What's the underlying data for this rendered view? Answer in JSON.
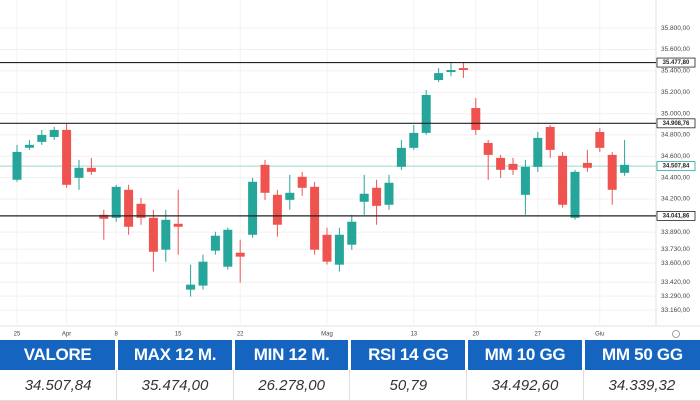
{
  "chart_data": {
    "type": "candlestick",
    "categories": [
      "25",
      null,
      null,
      null,
      "Apr",
      null,
      null,
      null,
      "8",
      null,
      null,
      null,
      null,
      "15",
      null,
      null,
      null,
      null,
      "22",
      null,
      null,
      null,
      null,
      null,
      null,
      "Mag",
      null,
      null,
      null,
      null,
      null,
      null,
      "13",
      null,
      null,
      null,
      null,
      "20",
      null,
      null,
      null,
      null,
      "27",
      null,
      null,
      null,
      null,
      "Giu",
      null,
      null
    ],
    "open": [
      34380,
      34680,
      34735,
      34781,
      34847,
      34398,
      34492,
      34052,
      34024,
      34286,
      34155,
      34024,
      33725,
      33968,
      33351,
      33389,
      33716,
      33566,
      33697,
      33865,
      34520,
      34239,
      34192,
      34408,
      34314,
      33865,
      33585,
      33772,
      34174,
      34305,
      34146,
      34501,
      34679,
      34819,
      35314,
      35389,
      35426,
      35052,
      34725,
      34585,
      34529,
      34239,
      34501,
      34875,
      34604,
      34024,
      34538,
      34828,
      34613,
      34445
    ],
    "high": [
      34707,
      34753,
      34847,
      34875,
      34903,
      34566,
      34585,
      34099,
      34333,
      34333,
      34211,
      34099,
      34099,
      34286,
      33585,
      33679,
      33893,
      33931,
      33819,
      34398,
      34566,
      34286,
      34426,
      34454,
      34361,
      33931,
      33931,
      34052,
      34426,
      34380,
      34426,
      34753,
      34893,
      35221,
      35426,
      35473,
      35482,
      35146,
      34753,
      34613,
      34585,
      34566,
      34828,
      34893,
      34641,
      34473,
      34660,
      34865,
      34641,
      34753
    ],
    "low": [
      34361,
      34660,
      34707,
      34753,
      34305,
      34286,
      34426,
      33819,
      33987,
      33865,
      33959,
      33520,
      33613,
      33679,
      33286,
      33351,
      33679,
      33538,
      33417,
      33837,
      34192,
      33847,
      34099,
      34230,
      33679,
      33585,
      33520,
      33725,
      34052,
      33959,
      34099,
      34473,
      34660,
      34800,
      35295,
      35351,
      35333,
      34800,
      34379,
      34398,
      34426,
      34052,
      34454,
      34585,
      34118,
      34006,
      34454,
      34641,
      34146,
      34417
    ],
    "close": [
      34641,
      34707,
      34800,
      34847,
      34333,
      34492,
      34454,
      34015,
      34314,
      33940,
      34024,
      33706,
      34005,
      33940,
      33398,
      33613,
      33856,
      33912,
      33660,
      34361,
      34258,
      33959,
      34258,
      34305,
      33725,
      33613,
      33865,
      33987,
      34249,
      34136,
      34352,
      34679,
      34819,
      35174,
      35379,
      35408,
      35408,
      34847,
      34613,
      34473,
      34473,
      34501,
      34772,
      34660,
      34146,
      34454,
      34492,
      34679,
      34286,
      34520
    ],
    "up_color": "#26a69a",
    "down_color": "#ef5350",
    "ylim": [
      33020,
      35970
    ],
    "yticks": [
      {
        "value": 35800,
        "label": "35.800,00"
      },
      {
        "value": 35600,
        "label": "35.600,00"
      },
      {
        "value": 35400,
        "label": "35.400,00"
      },
      {
        "value": 35200,
        "label": "35.200,00"
      },
      {
        "value": 35000,
        "label": "35.000,00"
      },
      {
        "value": 34800,
        "label": "34.800,00"
      },
      {
        "value": 34600,
        "label": "34.600,00"
      },
      {
        "value": 34400,
        "label": "34.400,00"
      },
      {
        "value": 34200,
        "label": "34.200,00"
      },
      {
        "value": 33890,
        "label": "33.890,00"
      },
      {
        "value": 33730,
        "label": "33.730,00"
      },
      {
        "value": 33600,
        "label": "33.600,00"
      },
      {
        "value": 33420,
        "label": "33.420,00"
      },
      {
        "value": 33290,
        "label": "33.290,00"
      },
      {
        "value": 33160,
        "label": "33.160,00"
      }
    ],
    "levels": [
      {
        "value": 35477.8,
        "label": "35.477,80"
      },
      {
        "value": 34908.76,
        "label": "34.908,76"
      },
      {
        "value": 34041.86,
        "label": "34.041,86"
      }
    ],
    "last_price": {
      "value": 34507.84,
      "label": "34.507,84"
    },
    "grid": true
  },
  "table": {
    "headers": [
      "VALORE",
      "MAX 12 M.",
      "MIN 12 M.",
      "RSI 14 GG",
      "MM 10 GG",
      "MM 50 GG"
    ],
    "rows": [
      [
        "34.507,84",
        "35.474,00",
        "26.278,00",
        "50,79",
        "34.492,60",
        "34.339,32"
      ]
    ]
  }
}
